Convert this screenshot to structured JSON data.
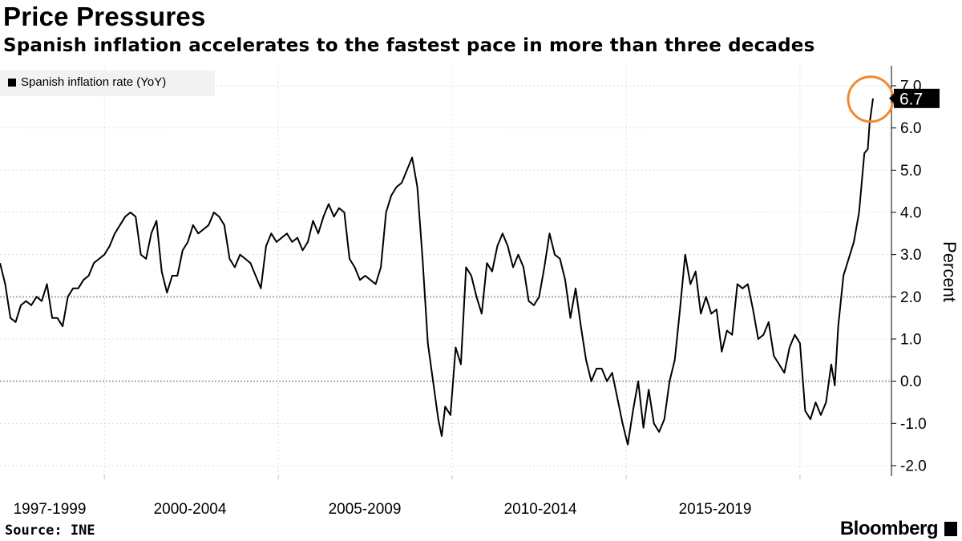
{
  "header": {
    "title": "Price Pressures",
    "subtitle": "Spanish inflation accelerates to the fastest pace in more than three decades"
  },
  "footer": {
    "source": "Source: INE",
    "brand": "Bloomberg"
  },
  "colors": {
    "line": "#000000",
    "highlight_circle": "#f0892d",
    "grid": "#dddddd",
    "reference_line": "#aaaaaa",
    "legend_bg": "#f2f2f2"
  },
  "chart_data": {
    "type": "line",
    "title": "",
    "ylabel": "Percent",
    "ylim": [
      -2.0,
      7.0
    ],
    "y_ticks": [
      "-2.0",
      "-1.0",
      "0.0",
      "1.0",
      "2.0",
      "3.0",
      "4.0",
      "5.0",
      "6.0",
      "7.0"
    ],
    "x_range": [
      1997.0,
      2022.2
    ],
    "x_tick_labels": [
      {
        "x": 1998.5,
        "label": "1997-1999"
      },
      {
        "x": 2002.5,
        "label": "2000-2004"
      },
      {
        "x": 2007.5,
        "label": "2005-2009"
      },
      {
        "x": 2012.5,
        "label": "2010-2014"
      },
      {
        "x": 2017.5,
        "label": "2015-2019"
      }
    ],
    "x_separators": [
      2000,
      2005,
      2010,
      2015,
      2020
    ],
    "reference_lines": [
      0.0,
      2.0
    ],
    "legend": {
      "position": "top-left",
      "entries": [
        "Spanish inflation rate (YoY)"
      ]
    },
    "last_value_label": "6.7",
    "highlight": {
      "x": 2022.1,
      "y": 6.7,
      "shape": "circle"
    },
    "series": [
      {
        "name": "Spanish inflation rate (YoY)",
        "points": [
          [
            1997.0,
            2.8
          ],
          [
            1997.15,
            2.3
          ],
          [
            1997.3,
            1.5
          ],
          [
            1997.45,
            1.4
          ],
          [
            1997.6,
            1.8
          ],
          [
            1997.75,
            1.9
          ],
          [
            1997.9,
            1.8
          ],
          [
            1998.05,
            2.0
          ],
          [
            1998.2,
            1.9
          ],
          [
            1998.35,
            2.3
          ],
          [
            1998.5,
            1.5
          ],
          [
            1998.65,
            1.5
          ],
          [
            1998.8,
            1.3
          ],
          [
            1998.95,
            2.0
          ],
          [
            1999.1,
            2.2
          ],
          [
            1999.25,
            2.2
          ],
          [
            1999.4,
            2.4
          ],
          [
            1999.55,
            2.5
          ],
          [
            1999.7,
            2.8
          ],
          [
            1999.85,
            2.9
          ],
          [
            2000.0,
            3.0
          ],
          [
            2000.15,
            3.2
          ],
          [
            2000.3,
            3.5
          ],
          [
            2000.45,
            3.7
          ],
          [
            2000.6,
            3.9
          ],
          [
            2000.75,
            4.0
          ],
          [
            2000.9,
            3.9
          ],
          [
            2001.05,
            3.0
          ],
          [
            2001.2,
            2.9
          ],
          [
            2001.35,
            3.5
          ],
          [
            2001.5,
            3.8
          ],
          [
            2001.65,
            2.6
          ],
          [
            2001.8,
            2.1
          ],
          [
            2001.95,
            2.5
          ],
          [
            2002.1,
            2.5
          ],
          [
            2002.25,
            3.1
          ],
          [
            2002.4,
            3.3
          ],
          [
            2002.55,
            3.7
          ],
          [
            2002.7,
            3.5
          ],
          [
            2002.85,
            3.6
          ],
          [
            2003.0,
            3.7
          ],
          [
            2003.15,
            4.0
          ],
          [
            2003.3,
            3.9
          ],
          [
            2003.45,
            3.7
          ],
          [
            2003.6,
            2.9
          ],
          [
            2003.75,
            2.7
          ],
          [
            2003.9,
            3.0
          ],
          [
            2004.05,
            2.9
          ],
          [
            2004.2,
            2.8
          ],
          [
            2004.35,
            2.5
          ],
          [
            2004.5,
            2.2
          ],
          [
            2004.65,
            3.2
          ],
          [
            2004.8,
            3.5
          ],
          [
            2004.95,
            3.3
          ],
          [
            2005.1,
            3.4
          ],
          [
            2005.25,
            3.5
          ],
          [
            2005.4,
            3.3
          ],
          [
            2005.55,
            3.4
          ],
          [
            2005.7,
            3.1
          ],
          [
            2005.85,
            3.3
          ],
          [
            2006.0,
            3.8
          ],
          [
            2006.15,
            3.5
          ],
          [
            2006.3,
            3.9
          ],
          [
            2006.45,
            4.2
          ],
          [
            2006.6,
            3.9
          ],
          [
            2006.75,
            4.1
          ],
          [
            2006.9,
            4.0
          ],
          [
            2007.05,
            2.9
          ],
          [
            2007.2,
            2.7
          ],
          [
            2007.35,
            2.4
          ],
          [
            2007.5,
            2.5
          ],
          [
            2007.65,
            2.4
          ],
          [
            2007.8,
            2.3
          ],
          [
            2007.95,
            2.7
          ],
          [
            2008.1,
            4.0
          ],
          [
            2008.25,
            4.4
          ],
          [
            2008.4,
            4.6
          ],
          [
            2008.55,
            4.7
          ],
          [
            2008.7,
            5.0
          ],
          [
            2008.85,
            5.3
          ],
          [
            2009.0,
            4.6
          ],
          [
            2009.15,
            2.9
          ],
          [
            2009.3,
            0.9
          ],
          [
            2009.45,
            0.0
          ],
          [
            2009.6,
            -0.9
          ],
          [
            2009.7,
            -1.3
          ],
          [
            2009.8,
            -0.6
          ],
          [
            2009.95,
            -0.8
          ],
          [
            2010.1,
            0.8
          ],
          [
            2010.25,
            0.4
          ],
          [
            2010.4,
            2.7
          ],
          [
            2010.55,
            2.5
          ],
          [
            2010.7,
            2.0
          ],
          [
            2010.85,
            1.6
          ],
          [
            2011.0,
            2.8
          ],
          [
            2011.15,
            2.6
          ],
          [
            2011.3,
            3.2
          ],
          [
            2011.45,
            3.5
          ],
          [
            2011.6,
            3.2
          ],
          [
            2011.75,
            2.7
          ],
          [
            2011.9,
            3.0
          ],
          [
            2012.05,
            2.7
          ],
          [
            2012.2,
            1.9
          ],
          [
            2012.35,
            1.8
          ],
          [
            2012.5,
            2.0
          ],
          [
            2012.65,
            2.7
          ],
          [
            2012.8,
            3.5
          ],
          [
            2012.95,
            3.0
          ],
          [
            2013.1,
            2.9
          ],
          [
            2013.25,
            2.4
          ],
          [
            2013.4,
            1.5
          ],
          [
            2013.55,
            2.2
          ],
          [
            2013.7,
            1.3
          ],
          [
            2013.85,
            0.5
          ],
          [
            2014.0,
            0.0
          ],
          [
            2014.15,
            0.3
          ],
          [
            2014.3,
            0.3
          ],
          [
            2014.45,
            0.0
          ],
          [
            2014.6,
            0.2
          ],
          [
            2014.75,
            -0.4
          ],
          [
            2014.9,
            -1.0
          ],
          [
            2015.05,
            -1.5
          ],
          [
            2015.2,
            -0.7
          ],
          [
            2015.35,
            0.0
          ],
          [
            2015.5,
            -1.1
          ],
          [
            2015.65,
            -0.2
          ],
          [
            2015.8,
            -1.0
          ],
          [
            2015.95,
            -1.2
          ],
          [
            2016.1,
            -0.9
          ],
          [
            2016.25,
            0.0
          ],
          [
            2016.4,
            0.5
          ],
          [
            2016.55,
            1.7
          ],
          [
            2016.7,
            3.0
          ],
          [
            2016.85,
            2.3
          ],
          [
            2017.0,
            2.6
          ],
          [
            2017.15,
            1.6
          ],
          [
            2017.3,
            2.0
          ],
          [
            2017.45,
            1.6
          ],
          [
            2017.6,
            1.7
          ],
          [
            2017.75,
            0.7
          ],
          [
            2017.9,
            1.2
          ],
          [
            2018.05,
            1.1
          ],
          [
            2018.2,
            2.3
          ],
          [
            2018.35,
            2.2
          ],
          [
            2018.5,
            2.3
          ],
          [
            2018.65,
            1.7
          ],
          [
            2018.8,
            1.0
          ],
          [
            2018.95,
            1.1
          ],
          [
            2019.1,
            1.4
          ],
          [
            2019.25,
            0.6
          ],
          [
            2019.4,
            0.4
          ],
          [
            2019.55,
            0.2
          ],
          [
            2019.7,
            0.8
          ],
          [
            2019.85,
            1.1
          ],
          [
            2020.0,
            0.9
          ],
          [
            2020.15,
            -0.7
          ],
          [
            2020.3,
            -0.9
          ],
          [
            2020.45,
            -0.5
          ],
          [
            2020.6,
            -0.8
          ],
          [
            2020.75,
            -0.5
          ],
          [
            2020.9,
            0.4
          ],
          [
            2021.0,
            -0.1
          ],
          [
            2021.1,
            1.3
          ],
          [
            2021.25,
            2.5
          ],
          [
            2021.4,
            2.9
          ],
          [
            2021.55,
            3.3
          ],
          [
            2021.7,
            4.0
          ],
          [
            2021.85,
            5.4
          ],
          [
            2021.95,
            5.5
          ],
          [
            2022.0,
            6.1
          ],
          [
            2022.1,
            6.7
          ]
        ]
      }
    ]
  }
}
